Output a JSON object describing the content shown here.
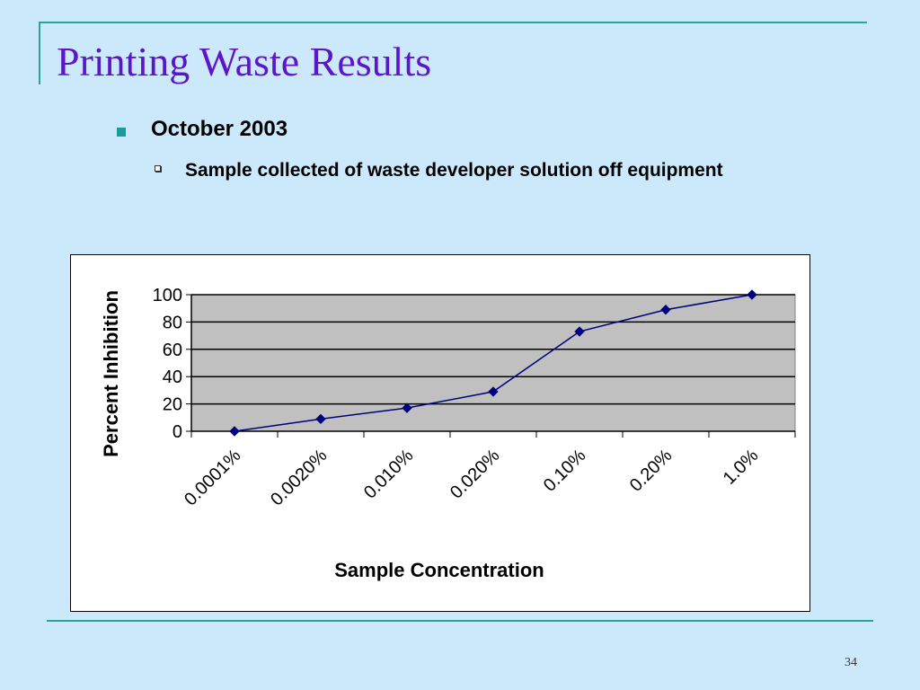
{
  "slide": {
    "title": "Printing Waste Results",
    "bullet_1": "October 2003",
    "bullet_2": "Sample collected of waste developer solution off equipment",
    "page_number": "34",
    "colors": {
      "background": "#cce9fb",
      "title": "#5a16c8",
      "rule": "#2aa39a",
      "series": "#00007f",
      "plot_area": "#c0c0c0"
    }
  },
  "chart_data": {
    "type": "line",
    "xlabel": "Sample Concentration",
    "ylabel": "Percent Inhibition",
    "categories": [
      "0.0001%",
      "0.0020%",
      "0.010%",
      "0.020%",
      "0.10%",
      "0.20%",
      "1.0%"
    ],
    "values": [
      0,
      9,
      17,
      29,
      73,
      89,
      100
    ],
    "ylim": [
      0,
      100
    ],
    "yticks": [
      0,
      20,
      40,
      60,
      80,
      100
    ],
    "grid": true,
    "legend": "none",
    "marker": "diamond"
  }
}
